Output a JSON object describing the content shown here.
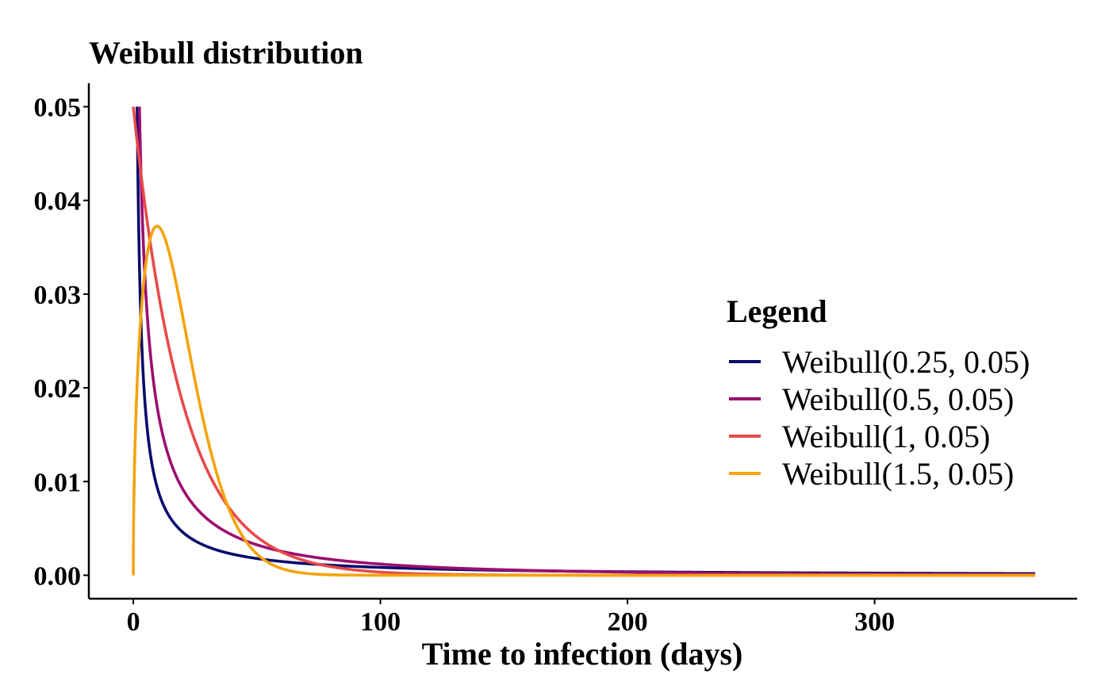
{
  "chart_data": {
    "type": "line",
    "title": "Weibull distribution",
    "xlabel": "Time to infection (days)",
    "ylabel": "",
    "xlim": [
      -18,
      382
    ],
    "ylim": [
      -0.0025,
      0.0525
    ],
    "xticks": [
      0,
      100,
      200,
      300
    ],
    "xtick_labels": [
      "0",
      "100",
      "200",
      "300"
    ],
    "yticks": [
      0,
      0.01,
      0.02,
      0.03,
      0.04,
      0.05
    ],
    "ytick_labels": [
      "0.00",
      "0.01",
      "0.02",
      "0.03",
      "0.04",
      "0.05"
    ],
    "x_range": [
      0,
      365
    ],
    "y_clip_max": 0.05,
    "grid": false,
    "legend": {
      "title": "Legend",
      "position": "right"
    },
    "series": [
      {
        "name": "Weibull(0.25, 0.05)",
        "shape": 0.25,
        "rate": 0.05,
        "color": "#0A0C6B"
      },
      {
        "name": "Weibull(0.5, 0.05)",
        "shape": 0.5,
        "rate": 0.05,
        "color": "#9C0E6E"
      },
      {
        "name": "Weibull(1, 0.05)",
        "shape": 1,
        "rate": 0.05,
        "color": "#E84A4A"
      },
      {
        "name": "Weibull(1.5, 0.05)",
        "shape": 1.5,
        "rate": 0.05,
        "color": "#F5A30B"
      }
    ]
  }
}
